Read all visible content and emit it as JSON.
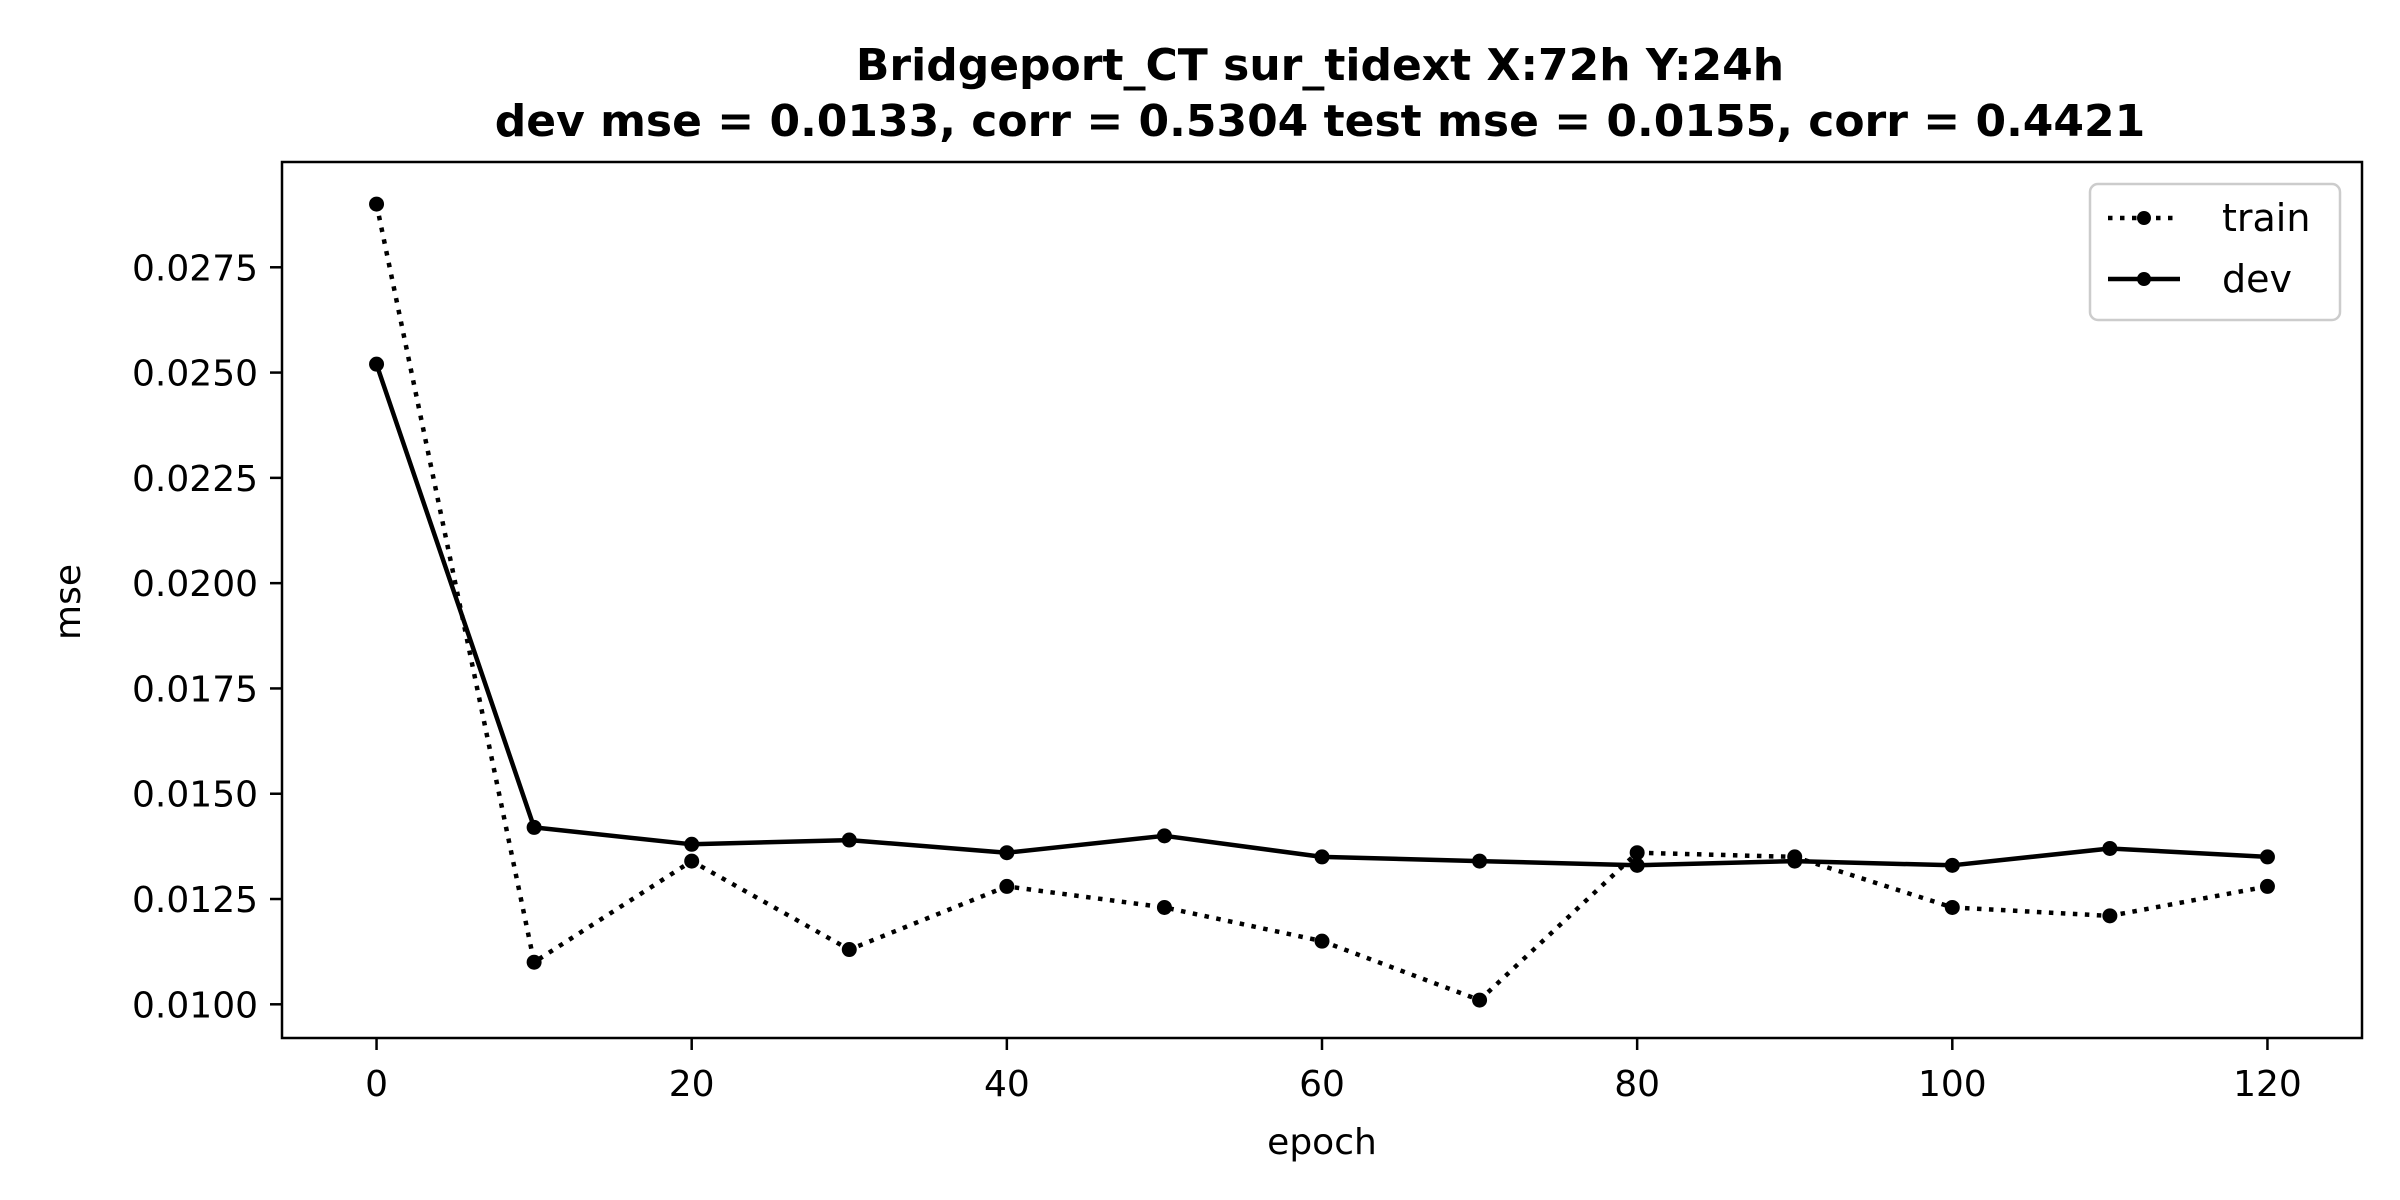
{
  "chart_data": {
    "type": "line",
    "title": "Bridgeport_CT   sur_tidext   X:72h   Y:24h",
    "subtitle": "dev mse = 0.0133, corr = 0.5304   test mse = 0.0155, corr = 0.4421",
    "xlabel": "epoch",
    "ylabel": "mse",
    "xlim": [
      -6,
      126
    ],
    "ylim": [
      0.0092,
      0.03
    ],
    "x_ticks": [
      0,
      20,
      40,
      60,
      80,
      100,
      120
    ],
    "x_tick_labels": [
      "0",
      "20",
      "40",
      "60",
      "80",
      "100",
      "120"
    ],
    "y_ticks": [
      0.01,
      0.0125,
      0.015,
      0.0175,
      0.02,
      0.0225,
      0.025,
      0.0275
    ],
    "y_tick_labels": [
      "0.0100",
      "0.0125",
      "0.0150",
      "0.0175",
      "0.0200",
      "0.0225",
      "0.0250",
      "0.0275"
    ],
    "grid": false,
    "legend_position": "top-right",
    "x": [
      0,
      10,
      20,
      30,
      40,
      50,
      60,
      70,
      80,
      90,
      100,
      110,
      120
    ],
    "series": [
      {
        "name": "train",
        "style": "dotted",
        "color": "#000000",
        "values": [
          0.029,
          0.011,
          0.0134,
          0.0113,
          0.0128,
          0.0123,
          0.0115,
          0.0101,
          0.0136,
          0.0135,
          0.0123,
          0.0121,
          0.0128
        ]
      },
      {
        "name": "dev",
        "style": "solid",
        "color": "#000000",
        "values": [
          0.0252,
          0.0142,
          0.0138,
          0.0139,
          0.0136,
          0.014,
          0.0135,
          0.0134,
          0.0133,
          0.0134,
          0.0133,
          0.0137,
          0.0135
        ]
      }
    ]
  }
}
